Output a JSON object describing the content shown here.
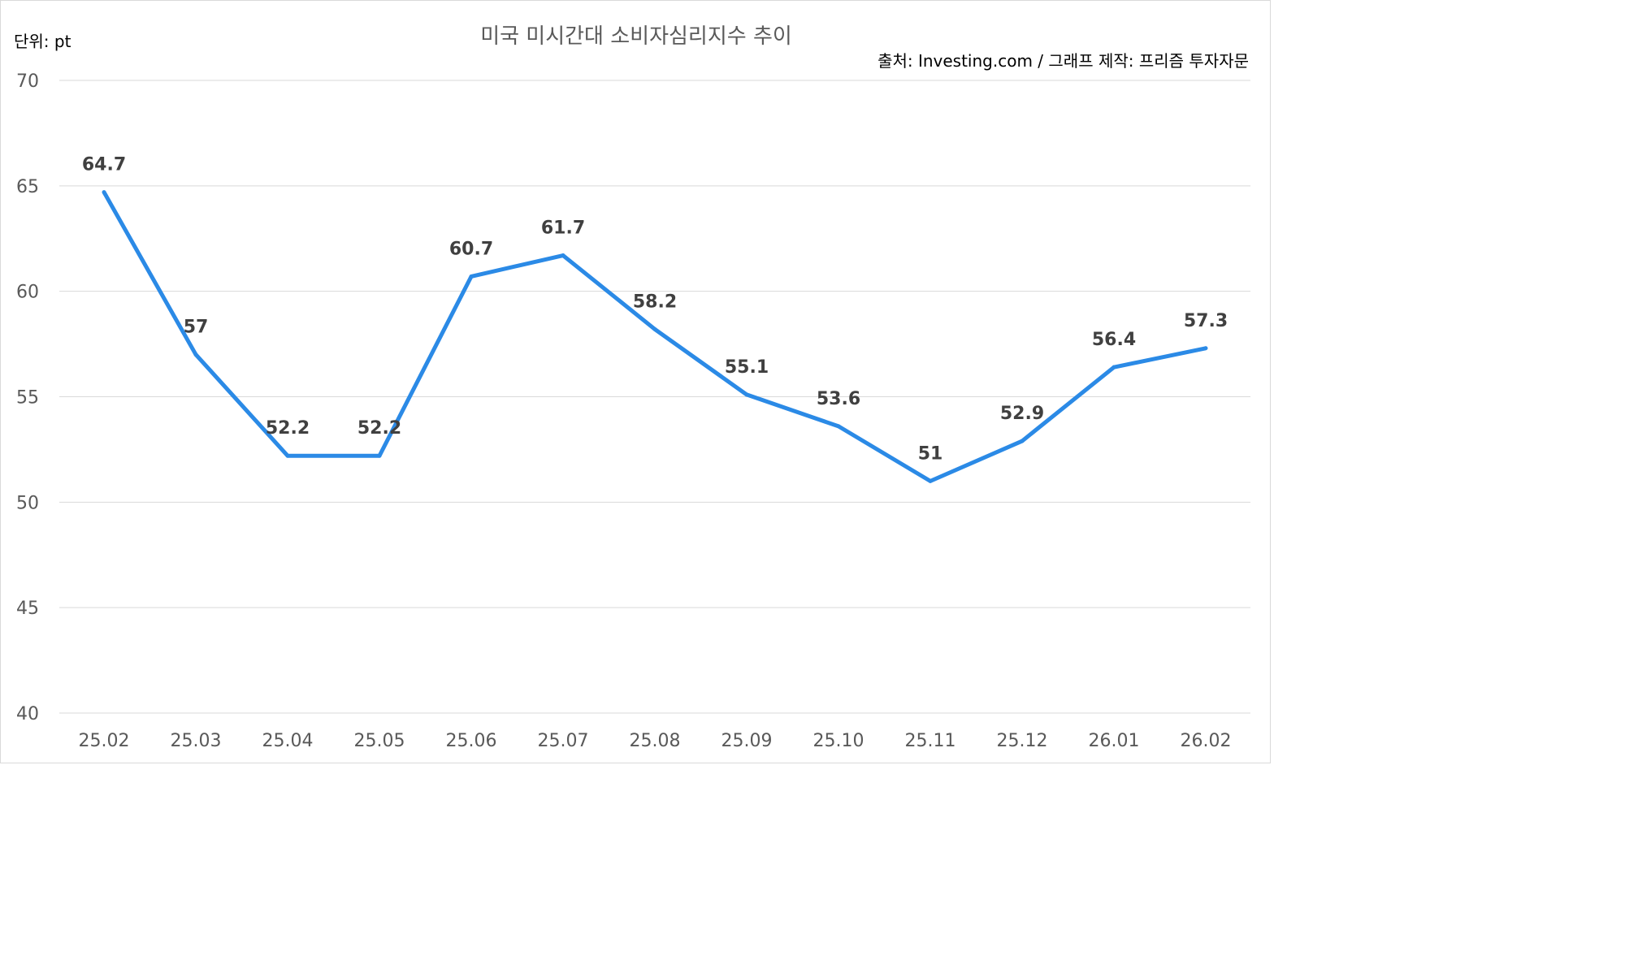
{
  "chart_data": {
    "type": "line",
    "title": "미국 미시간대 소비자심리지수 추이",
    "unit_label": "단위: pt",
    "source_label": "출처: Investing.com / 그래프 제작: 프리즘 투자자문",
    "categories": [
      "25.02",
      "25.03",
      "25.04",
      "25.05",
      "25.06",
      "25.07",
      "25.08",
      "25.09",
      "25.10",
      "25.11",
      "25.12",
      "26.01",
      "26.02"
    ],
    "series": [
      {
        "values": [
          64.7,
          57,
          52.2,
          52.2,
          60.7,
          61.7,
          58.2,
          55.1,
          53.6,
          51,
          52.9,
          56.4,
          57.3
        ],
        "color": "#2b8ae6"
      }
    ],
    "data_labels": [
      "64.7",
      "57",
      "52.2",
      "52.2",
      "60.7",
      "61.7",
      "58.2",
      "55.1",
      "53.6",
      "51",
      "52.9",
      "56.4",
      "57.3"
    ],
    "ylim": [
      40,
      70
    ],
    "yticks": [
      "70",
      "65",
      "60",
      "55",
      "50",
      "45",
      "40"
    ],
    "grid": true,
    "legend": "none"
  }
}
